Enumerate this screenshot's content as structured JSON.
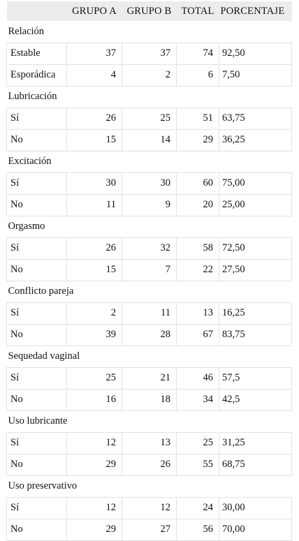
{
  "header": [
    "",
    "GRUPO A",
    "GRUPO B",
    "TOTAL",
    "PORCENTAJE"
  ],
  "sections": [
    {
      "title": "Relación",
      "rows": [
        {
          "label": "Estable",
          "a": "37",
          "b": "37",
          "total": "74",
          "pct": "92,50"
        },
        {
          "label": "Esporádica",
          "a": "4",
          "b": "2",
          "total": "6",
          "pct": "7,50"
        }
      ]
    },
    {
      "title": "Lubricación",
      "rows": [
        {
          "label": "Sí",
          "a": "26",
          "b": "25",
          "total": "51",
          "pct": "63,75"
        },
        {
          "label": "No",
          "a": "15",
          "b": "14",
          "total": "29",
          "pct": "36,25"
        }
      ]
    },
    {
      "title": "Excitación",
      "rows": [
        {
          "label": "Sí",
          "a": "30",
          "b": "30",
          "total": "60",
          "pct": "75,00"
        },
        {
          "label": "No",
          "a": "11",
          "b": "9",
          "total": "20",
          "pct": "25,00"
        }
      ]
    },
    {
      "title": "Orgasmo",
      "rows": [
        {
          "label": "Sí",
          "a": "26",
          "b": "32",
          "total": "58",
          "pct": "72,50"
        },
        {
          "label": "No",
          "a": "15",
          "b": "7",
          "total": "22",
          "pct": "27,50"
        }
      ]
    },
    {
      "title": "Conflicto pareja",
      "rows": [
        {
          "label": "Sí",
          "a": "2",
          "b": "11",
          "total": "13",
          "pct": "16,25"
        },
        {
          "label": "No",
          "a": "39",
          "b": "28",
          "total": "67",
          "pct": "83,75"
        }
      ]
    },
    {
      "title": "Sequedad vaginal",
      "rows": [
        {
          "label": "Sí",
          "a": "25",
          "b": "21",
          "total": "46",
          "pct": "57,5"
        },
        {
          "label": "No",
          "a": "16",
          "b": "18",
          "total": "34",
          "pct": "42,5"
        }
      ]
    },
    {
      "title": "Uso lubricante",
      "rows": [
        {
          "label": "Sí",
          "a": "12",
          "b": "13",
          "total": "25",
          "pct": "31,25"
        },
        {
          "label": "No",
          "a": "29",
          "b": "26",
          "total": "55",
          "pct": "68,75"
        }
      ]
    },
    {
      "title": "Uso preservativo",
      "rows": [
        {
          "label": "Sí",
          "a": "12",
          "b": "12",
          "total": "24",
          "pct": "30,00"
        },
        {
          "label": "No",
          "a": "29",
          "b": "27",
          "total": "56",
          "pct": "70,00"
        }
      ]
    }
  ]
}
